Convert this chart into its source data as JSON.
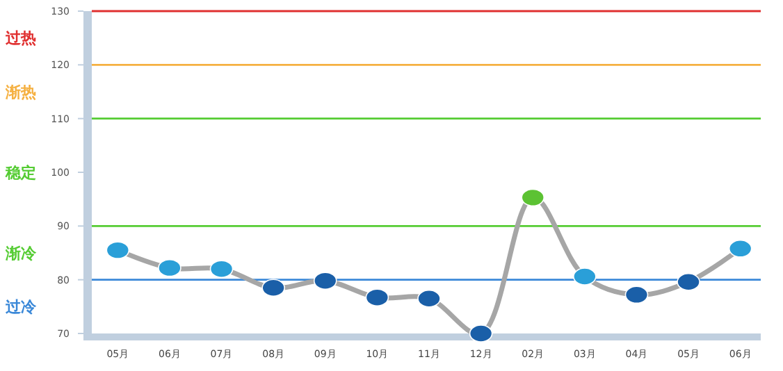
{
  "chart_data": {
    "type": "line",
    "categories": [
      "05月",
      "06月",
      "07月",
      "08月",
      "09月",
      "10月",
      "11月",
      "12月",
      "02月",
      "03月",
      "04月",
      "05月",
      "06月"
    ],
    "series": [
      {
        "color": "#a6a6a6",
        "colors": [
          "#2a9fd8",
          "#2a9fd8",
          "#2a9fd8",
          "#1a5fa8",
          "#1a5fa8",
          "#1a5fa8",
          "#1a5fa8",
          "#1a5fa8",
          "#5cc233",
          "#2a9fd8",
          "#1a5fa8",
          "#1a5fa8",
          "#2a9fd8"
        ],
        "values": [
          85.5,
          82.2,
          82,
          78.5,
          79.8,
          76.7,
          76.5,
          70,
          95.3,
          80.6,
          77.2,
          79.6,
          85.8
        ]
      }
    ],
    "ylim": [
      70,
      130
    ],
    "yticks": [
      70,
      80,
      90,
      100,
      110,
      120,
      130
    ],
    "marker": "circle",
    "grid": false,
    "ref_lines": [
      {
        "axis": "y",
        "value": 130,
        "label": "过热",
        "color": "#e03030"
      },
      {
        "axis": "y",
        "value": 120,
        "label": "渐热",
        "color": "#f5b040"
      },
      {
        "axis": "y",
        "value": 110,
        "label": "稳定",
        "color": "#55cc33"
      },
      {
        "axis": "y",
        "value": 90,
        "label": "渐冷",
        "color": "#55cc33"
      },
      {
        "axis": "y",
        "value": 80,
        "label": "过冷",
        "color": "#3a88d8"
      }
    ]
  }
}
